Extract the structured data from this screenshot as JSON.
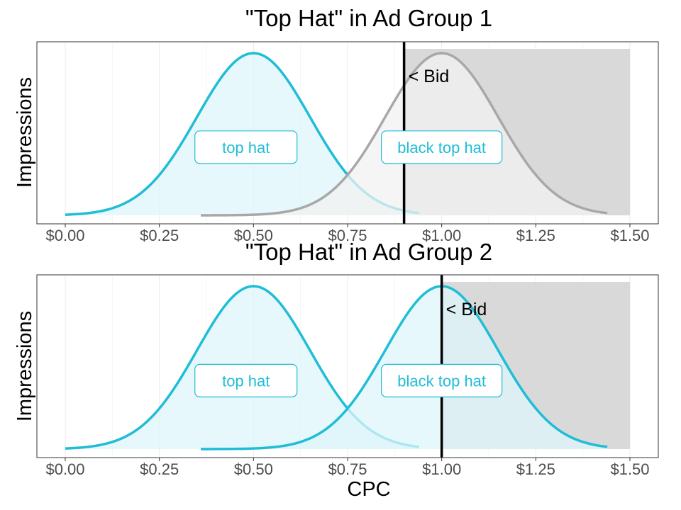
{
  "chart_data": [
    {
      "type": "area",
      "title": "\"Top Hat\" in Ad Group 1",
      "ylabel": "Impressions",
      "xlabel": "",
      "xlim": [
        0,
        1.5
      ],
      "x_ticks": [
        "$0.00",
        "$0.25",
        "$0.50",
        "$0.75",
        "$1.00",
        "$1.25",
        "$1.50"
      ],
      "x_tick_values": [
        0,
        0.25,
        0.5,
        0.75,
        1.0,
        1.25,
        1.5
      ],
      "grid": true,
      "bid": {
        "label": "< Bid",
        "value": 0.9
      },
      "bid_region": {
        "from": 0.9,
        "to": 1.5,
        "color": "#d9d9d9"
      },
      "series": [
        {
          "name": "top hat",
          "mean": 0.5,
          "sd": 0.15,
          "x_range": [
            0,
            0.94
          ],
          "color": "#1fbdd6",
          "fill": "#ddf5fa",
          "label_x": 0.48,
          "label_y": 0.42
        },
        {
          "name": "black top hat",
          "mean": 1.0,
          "sd": 0.15,
          "x_range": [
            0.36,
            1.44
          ],
          "color": "#a8a8a8",
          "fill": "#f2f2f2",
          "label_x": 1.0,
          "label_y": 0.42
        }
      ]
    },
    {
      "type": "area",
      "title": "\"Top Hat\" in Ad Group 2",
      "ylabel": "Impressions",
      "xlabel": "CPC",
      "xlim": [
        0,
        1.5
      ],
      "x_ticks": [
        "$0.00",
        "$0.25",
        "$0.50",
        "$0.75",
        "$1.00",
        "$1.25",
        "$1.50"
      ],
      "x_tick_values": [
        0,
        0.25,
        0.5,
        0.75,
        1.0,
        1.25,
        1.5
      ],
      "grid": true,
      "bid": {
        "label": "< Bid",
        "value": 1.0
      },
      "bid_region": {
        "from": 1.0,
        "to": 1.5,
        "color": "#d9d9d9"
      },
      "series": [
        {
          "name": "top hat",
          "mean": 0.5,
          "sd": 0.15,
          "x_range": [
            0,
            0.94
          ],
          "color": "#1fbdd6",
          "fill": "#ddf5fa",
          "label_x": 0.48,
          "label_y": 0.42
        },
        {
          "name": "black top hat",
          "mean": 1.0,
          "sd": 0.15,
          "x_range": [
            0.36,
            1.44
          ],
          "color": "#1fbdd6",
          "fill": "#ddf5fa",
          "label_x": 1.0,
          "label_y": 0.42
        }
      ]
    }
  ]
}
